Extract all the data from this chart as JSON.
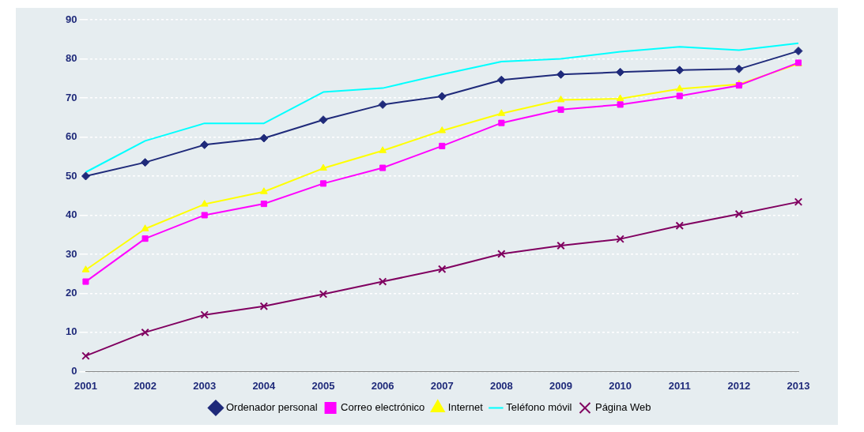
{
  "chart_data": {
    "type": "line",
    "categories": [
      "2001",
      "2002",
      "2003",
      "2004",
      "2005",
      "2006",
      "2007",
      "2008",
      "2009",
      "2010",
      "2011",
      "2012",
      "2013"
    ],
    "ylim": [
      0,
      90
    ],
    "yticks": [
      0,
      10,
      20,
      30,
      40,
      50,
      60,
      70,
      80,
      90
    ],
    "grid": "y",
    "legend": "bottom",
    "series": [
      {
        "name": "Ordenador personal",
        "color": "#1f2a7a",
        "marker": "diamond",
        "values": [
          50,
          53.5,
          58,
          59.7,
          64.4,
          68.3,
          70.4,
          74.6,
          76,
          76.6,
          77.1,
          77.4,
          82
        ]
      },
      {
        "name": "Correo electrónico",
        "color": "#ff00ff",
        "marker": "square",
        "values": [
          23,
          34,
          40,
          42.9,
          48.1,
          52.1,
          57.7,
          63.6,
          67,
          68.3,
          70.5,
          73.2,
          79
        ]
      },
      {
        "name": "Internet",
        "color": "#ffff00",
        "marker": "triangle",
        "values": [
          26,
          36.5,
          42.8,
          46,
          52,
          56.5,
          61.6,
          66,
          69.5,
          69.8,
          72.3,
          73.5,
          78.7
        ]
      },
      {
        "name": "Teléfono móvil",
        "color": "#00ffff",
        "marker": "none",
        "values": [
          51,
          59,
          63.5,
          63.5,
          71.5,
          72.5,
          76,
          79.3,
          80,
          81.8,
          83.1,
          82.2,
          84
        ]
      },
      {
        "name": "Página Web",
        "color": "#800060",
        "marker": "cross",
        "values": [
          4,
          10,
          14.5,
          16.7,
          19.8,
          23,
          26.2,
          30.1,
          32.2,
          33.9,
          37.3,
          40.3,
          43.4
        ]
      }
    ]
  }
}
